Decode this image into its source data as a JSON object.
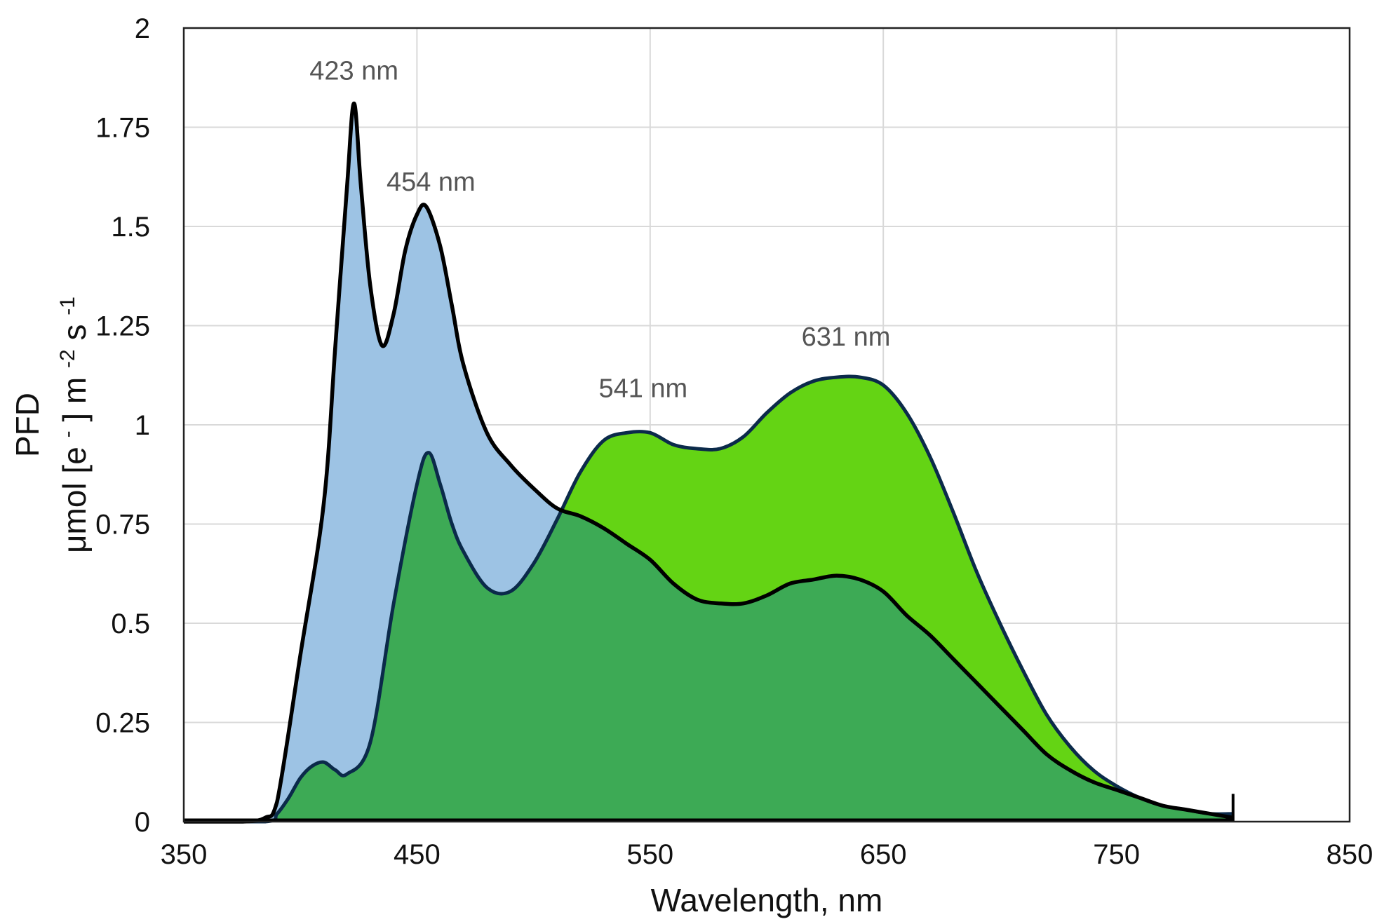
{
  "chart_data": {
    "type": "area",
    "title": "",
    "xlabel": "Wavelength, nm",
    "ylabel_line1": "PFD",
    "ylabel_line2_parts": [
      "μmol [e",
      "-",
      "] m",
      "-2",
      " s",
      "-1"
    ],
    "xlim": [
      350,
      850
    ],
    "ylim": [
      0,
      2
    ],
    "grid": true,
    "legend": "none",
    "x_ticks": [
      350,
      450,
      550,
      650,
      750,
      850
    ],
    "x_tick_labels": [
      "350",
      "450",
      "550",
      "650",
      "750",
      "850"
    ],
    "y_ticks": [
      0,
      0.25,
      0.5,
      0.75,
      1,
      1.25,
      1.5,
      1.75,
      2
    ],
    "y_tick_labels": [
      "0",
      "0.25",
      "0.5",
      "0.75",
      "1",
      "1.25",
      "1.5",
      "1.75",
      "2"
    ],
    "colors": {
      "blue_fill": "#9dc3e4",
      "green_fill": "#64d414",
      "dark_green_fill": "#3daa55",
      "outline": "#000000",
      "grid": "#d9d9d9"
    },
    "series": [
      {
        "fill": "#9dc3e4",
        "x": [
          350,
          375,
          385,
          390,
          400,
          410,
          415,
          420,
          423,
          426,
          430,
          435,
          440,
          445,
          450,
          454,
          460,
          465,
          470,
          480,
          490,
          500,
          510,
          520,
          530,
          540,
          550,
          560,
          570,
          580,
          590,
          600,
          610,
          620,
          630,
          640,
          650,
          660,
          670,
          680,
          690,
          700,
          710,
          720,
          730,
          740,
          750,
          760,
          770,
          780,
          790,
          800
        ],
        "y": [
          0,
          0,
          0.01,
          0.05,
          0.42,
          0.8,
          1.2,
          1.6,
          1.81,
          1.6,
          1.35,
          1.2,
          1.28,
          1.44,
          1.53,
          1.55,
          1.45,
          1.3,
          1.15,
          0.98,
          0.9,
          0.84,
          0.79,
          0.77,
          0.74,
          0.7,
          0.66,
          0.6,
          0.56,
          0.55,
          0.55,
          0.57,
          0.6,
          0.61,
          0.62,
          0.61,
          0.58,
          0.52,
          0.47,
          0.41,
          0.35,
          0.29,
          0.23,
          0.17,
          0.13,
          0.1,
          0.08,
          0.06,
          0.04,
          0.03,
          0.02,
          0.01
        ]
      },
      {
        "fill": "#64d414",
        "x": [
          350,
          385,
          390,
          395,
          400,
          405,
          410,
          415,
          420,
          430,
          440,
          450,
          455,
          460,
          465,
          470,
          480,
          490,
          500,
          510,
          520,
          530,
          540,
          550,
          560,
          570,
          580,
          590,
          600,
          610,
          620,
          630,
          640,
          650,
          660,
          670,
          680,
          690,
          700,
          710,
          720,
          730,
          740,
          750,
          760,
          770,
          780,
          790,
          800
        ],
        "y": [
          0,
          0,
          0.02,
          0.06,
          0.11,
          0.14,
          0.15,
          0.13,
          0.12,
          0.2,
          0.55,
          0.85,
          0.93,
          0.85,
          0.75,
          0.68,
          0.59,
          0.58,
          0.65,
          0.76,
          0.88,
          0.96,
          0.98,
          0.98,
          0.95,
          0.94,
          0.94,
          0.97,
          1.03,
          1.08,
          1.11,
          1.12,
          1.12,
          1.1,
          1.03,
          0.92,
          0.78,
          0.63,
          0.5,
          0.38,
          0.27,
          0.19,
          0.13,
          0.09,
          0.06,
          0.04,
          0.03,
          0.02,
          0.02
        ]
      }
    ],
    "annotations": [
      {
        "text": "423 nm",
        "x": 423,
        "y": 1.87
      },
      {
        "text": "454 nm",
        "x": 456,
        "y": 1.59
      },
      {
        "text": "541 nm",
        "x": 547,
        "y": 1.07
      },
      {
        "text": "631 nm",
        "x": 634,
        "y": 1.2
      }
    ]
  }
}
